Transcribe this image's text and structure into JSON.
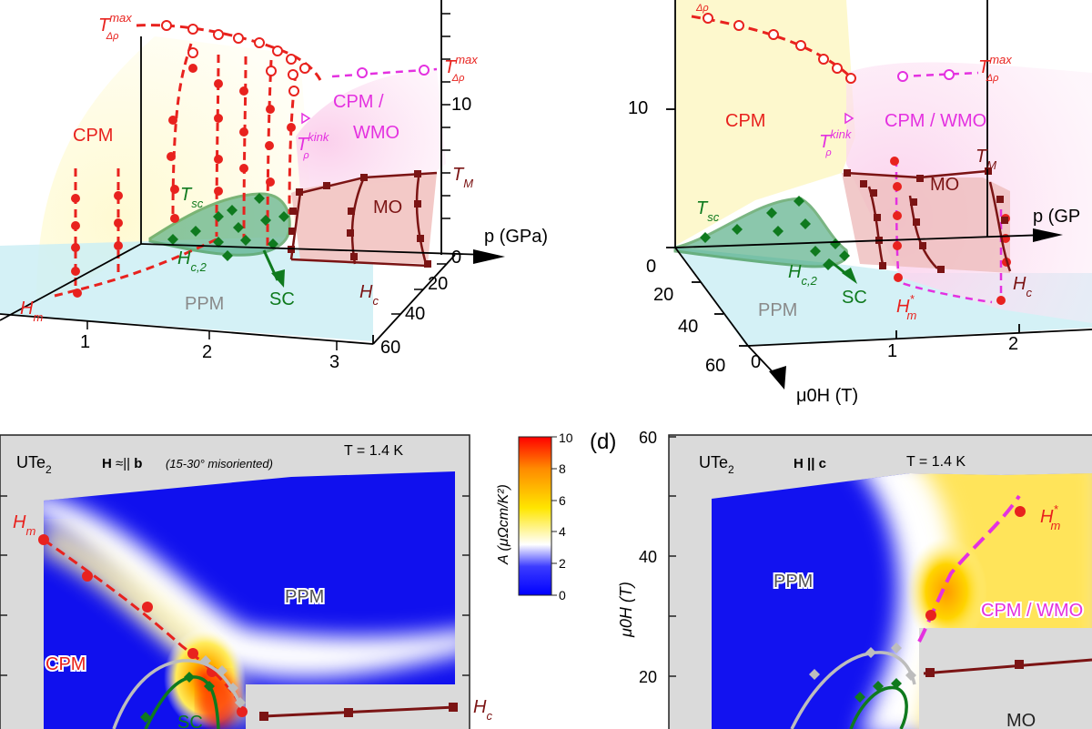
{
  "colors": {
    "cpm_fill": "#fdf7c8",
    "ppm_fill": "#cdeef4",
    "cpm_wmo_fill": "#fbd9ef",
    "mo_fill": "#f0c4c0",
    "sc_fill": "#2e9a6a",
    "red": "#e8221e",
    "dark_red": "#7b1414",
    "green": "#0f7a1e",
    "magenta": "#e431e0",
    "gray": "#bdbdbd",
    "nonmeasured": "#dadada"
  },
  "chart_data": [
    {
      "id": "panel-3d-left",
      "type": "line",
      "title": "",
      "xlabel": "p (GPa)",
      "axis_ticks": {
        "p": [
          "1",
          "2",
          "3"
        ],
        "H": [
          "20",
          "40",
          "60"
        ],
        "T": [
          "10"
        ],
        "p_origin": "0"
      },
      "regions": [
        "CPM",
        "CPM /",
        "WMO",
        "MO",
        "PPM",
        "SC"
      ],
      "labels": {
        "T_max": {
          "base": "T",
          "sup": "max",
          "sub": "Δρ"
        },
        "T_max_right": {
          "base": "T",
          "sup": "max",
          "sub": "Δρ"
        },
        "T_kink": {
          "base": "T",
          "sup": "kink",
          "sub": "ρ"
        },
        "T_sc": {
          "base": "T",
          "sub": "sc"
        },
        "H_c2": {
          "base": "H",
          "sub": "c,2"
        },
        "H_m": {
          "base": "H",
          "sub": "m"
        },
        "H_c": {
          "base": "H",
          "sub": "c"
        },
        "T_M": {
          "base": "T",
          "sub": "M"
        }
      },
      "series": [
        {
          "name": "T_max Δρ",
          "p_GPa": [
            0.9,
            1.2,
            1.5,
            1.7,
            1.9,
            2.05,
            2.2,
            2.35,
            2.45
          ],
          "T_K": [
            15.5,
            15.4,
            15.0,
            14.5,
            14.0,
            13.3,
            12.6,
            11.9,
            11.3
          ]
        },
        {
          "name": "T_max Δρ (CPM/WMO)",
          "p_GPa": [
            2.7,
            3.0
          ],
          "T_K": [
            11.5,
            11.5
          ]
        },
        {
          "name": "T_M",
          "p_GPa": [
            2.35,
            2.6,
            2.8,
            3.0
          ],
          "T_K": [
            7.0,
            7.2,
            7.3,
            7.3
          ]
        }
      ]
    },
    {
      "id": "panel-3d-right",
      "type": "line",
      "title": "",
      "xlabel": "p (GP",
      "zlabel": "μ0H (T)",
      "axis_ticks": {
        "p": [
          "1",
          "2"
        ],
        "H": [
          "20",
          "40",
          "60"
        ],
        "H_origin": "0",
        "T": [
          "10"
        ],
        "T_origin": "0"
      },
      "regions": [
        "CPM",
        "CPM / WMO",
        "MO",
        "PPM",
        "SC"
      ],
      "labels": {
        "T_max": {
          "base": "T",
          "sup": "max",
          "sub": "Δρ"
        },
        "T_max_right": {
          "base": "T",
          "sup": "max",
          "sub": "Δρ"
        },
        "T_kink": {
          "base": "T",
          "sup": "kink",
          "sub": "ρ"
        },
        "T_sc": {
          "base": "T",
          "sub": "sc"
        },
        "H_c2": {
          "base": "H",
          "sub": "c,2"
        },
        "H_m_star": {
          "base": "H",
          "sup": "*",
          "sub": "m"
        },
        "H_c": {
          "base": "H",
          "sub": "c"
        },
        "T_M": {
          "base": "T",
          "sub": "M"
        }
      },
      "series": [
        {
          "name": "T_max Δρ",
          "p_GPa": [
            0.0,
            0.3,
            0.6,
            0.9,
            1.2,
            1.4,
            1.55
          ],
          "T_K": [
            15.5,
            15.3,
            15.0,
            14.5,
            13.7,
            12.9,
            12.3
          ]
        },
        {
          "name": "T_max Δρ (CPM/WMO)",
          "p_GPa": [
            1.85,
            2.15
          ],
          "T_K": [
            12.3,
            12.3
          ]
        }
      ]
    },
    {
      "id": "panel-c-heatmap",
      "type": "heatmap",
      "title": "",
      "material": {
        "base": "UTe",
        "sub": "2"
      },
      "field_direction": {
        "h": "H",
        "mid": " ≈|| ",
        "b": "b"
      },
      "note": "(15-30° misoriented)",
      "temperature": "T = 1.4 K",
      "regions": [
        "PPM",
        "CPM",
        "SC"
      ],
      "labels": {
        "H_m": {
          "base": "H",
          "sub": "m"
        },
        "H_c": {
          "base": "H",
          "sub": "c"
        }
      },
      "series": [
        {
          "name": "H_m",
          "marker": "circle"
        },
        {
          "name": "H_c",
          "marker": "square"
        }
      ]
    },
    {
      "id": "panel-d-heatmap",
      "type": "heatmap",
      "title": "",
      "panel_label": "(d)",
      "material": {
        "base": "UTe",
        "sub": "2"
      },
      "field_direction": {
        "h": "H",
        "mid": " || ",
        "b": "c"
      },
      "temperature": "T = 1.4 K",
      "ylabel": "μ0H (T)",
      "y_ticks": [
        "60",
        "40",
        "20"
      ],
      "regions": [
        "PPM",
        "CPM / WMO",
        "MO"
      ],
      "labels": {
        "H_m_star": {
          "base": "H",
          "sup": "*",
          "sub": "m"
        }
      },
      "series": [
        {
          "name": "H*_m",
          "marker": "circle"
        },
        {
          "name": "H_c",
          "marker": "square"
        }
      ]
    }
  ],
  "colorbar": {
    "label": "A (μΩcm/K²)",
    "ticks": [
      "10",
      "8",
      "6",
      "4",
      "2",
      "0"
    ],
    "range": [
      0,
      10
    ],
    "colors": [
      "#ff0000",
      "#ff8a00",
      "#ffe600",
      "#ffffff",
      "#3b3bff",
      "#0000ff"
    ]
  }
}
